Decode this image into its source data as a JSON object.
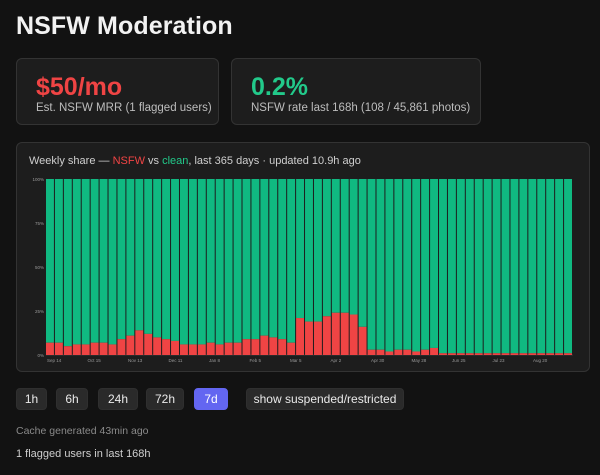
{
  "page": {
    "title": "NSFW Moderation"
  },
  "cards": {
    "mrr": {
      "value": "$50/mo",
      "label": "Est. NSFW MRR (1 flagged users)",
      "color": "#ef4444"
    },
    "rate": {
      "value": "0.2%",
      "label": "NSFW rate last 168h (108 / 45,861 photos)",
      "color": "#22c98a"
    }
  },
  "chart": {
    "caption_prefix": "Weekly share — ",
    "caption_nsfw": "NSFW",
    "caption_vs": " vs ",
    "caption_clean": "clean",
    "caption_suffix": ", last 365 days · updated 10.9h ago"
  },
  "chart_data": {
    "type": "bar",
    "stacked": true,
    "ylim": [
      0,
      100
    ],
    "y_ticks": [
      "0%",
      "25%",
      "50%",
      "75%",
      "100%"
    ],
    "x_tick_labels": [
      "Sep 14",
      "Oct 15",
      "Nov 13",
      "Dec 11",
      "Jan 8",
      "Feb 5",
      "Mar 5",
      "Apr 2",
      "Apr 30",
      "May 28",
      "Jun 25",
      "Jul 23",
      "Aug 20"
    ],
    "series": [
      {
        "name": "NSFW",
        "color": "#ef4444",
        "values": [
          7,
          7,
          5,
          6,
          6,
          7,
          7,
          6,
          9,
          11,
          14,
          12,
          10,
          9,
          8,
          6,
          6,
          6,
          7,
          6,
          7,
          7,
          9,
          9,
          11,
          10,
          9,
          7,
          21,
          19,
          19,
          22,
          24,
          24,
          23,
          16,
          3,
          3,
          2,
          3,
          3,
          2,
          3,
          4,
          1,
          1,
          1,
          1,
          1,
          1,
          1,
          1,
          1,
          1,
          1,
          1,
          1,
          1,
          1
        ]
      },
      {
        "name": "clean",
        "color": "#10b981"
      }
    ]
  },
  "range_buttons": [
    {
      "label": "1h",
      "active": false
    },
    {
      "label": "6h",
      "active": false
    },
    {
      "label": "24h",
      "active": false
    },
    {
      "label": "72h",
      "active": false
    },
    {
      "label": "7d",
      "active": true
    }
  ],
  "toggle_button": {
    "label": "show suspended/restricted"
  },
  "footer": {
    "cache": "Cache generated 43min ago",
    "flagged": "1 flagged users in last 168h"
  }
}
